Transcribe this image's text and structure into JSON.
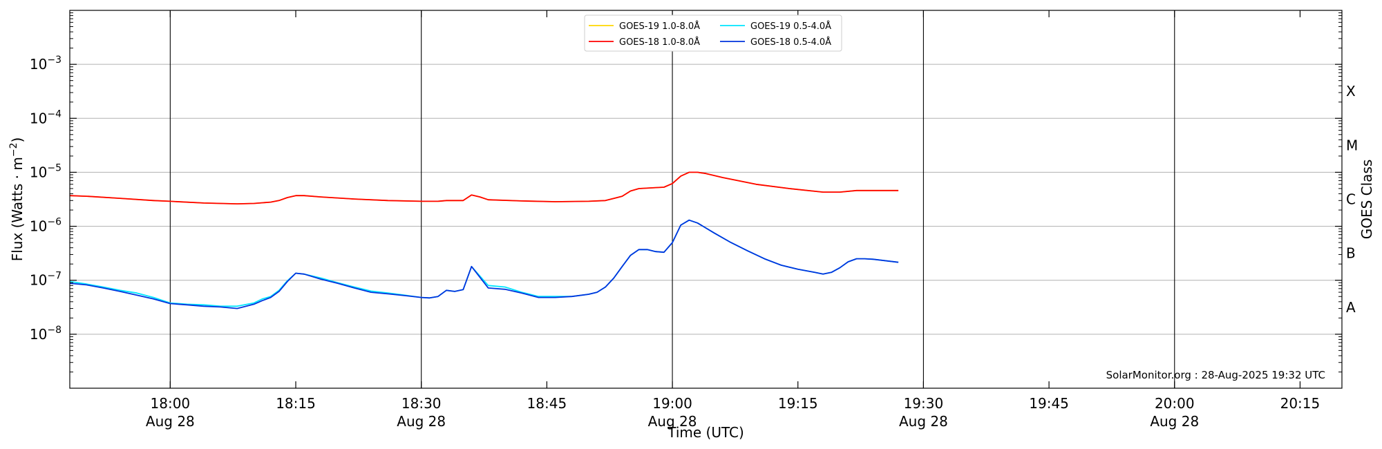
{
  "chart_data": {
    "type": "line",
    "xlabel": "Time (UTC)",
    "ylabel": "Flux (Watts · m",
    "ylabel_sup": "−2",
    "ylabel_close": ")",
    "right_label": "GOES Class",
    "credit": "SolarMonitor.org : 28-Aug-2025 19:32 UTC",
    "y_scale": "log",
    "ylim": [
      1e-09,
      0.01
    ],
    "xlim": [
      "17:48",
      "20:20"
    ],
    "grid": "horizontal",
    "legend_position": "top-center",
    "y_ticks": [
      {
        "value": 1e-08,
        "base": "10",
        "exp": "−8"
      },
      {
        "value": 1e-07,
        "base": "10",
        "exp": "−7"
      },
      {
        "value": 1e-06,
        "base": "10",
        "exp": "−6"
      },
      {
        "value": 1e-05,
        "base": "10",
        "exp": "−5"
      },
      {
        "value": 0.0001,
        "base": "10",
        "exp": "−4"
      },
      {
        "value": 0.001,
        "base": "10",
        "exp": "−3"
      }
    ],
    "x_ticks": [
      {
        "time": "18:00",
        "label": "18:00",
        "sublabel": "Aug 28",
        "vline": true
      },
      {
        "time": "18:15",
        "label": "18:15",
        "sublabel": "",
        "vline": false
      },
      {
        "time": "18:30",
        "label": "18:30",
        "sublabel": "Aug 28",
        "vline": true
      },
      {
        "time": "18:45",
        "label": "18:45",
        "sublabel": "",
        "vline": false
      },
      {
        "time": "19:00",
        "label": "19:00",
        "sublabel": "Aug 28",
        "vline": true
      },
      {
        "time": "19:15",
        "label": "19:15",
        "sublabel": "",
        "vline": false
      },
      {
        "time": "19:30",
        "label": "19:30",
        "sublabel": "Aug 28",
        "vline": true
      },
      {
        "time": "19:45",
        "label": "19:45",
        "sublabel": "",
        "vline": false
      },
      {
        "time": "20:00",
        "label": "20:00",
        "sublabel": "Aug 28",
        "vline": true
      },
      {
        "time": "20:15",
        "label": "20:15",
        "sublabel": "",
        "vline": false
      }
    ],
    "goes_classes": [
      {
        "label": "A",
        "value": 3.16e-08
      },
      {
        "label": "B",
        "value": 3.16e-07
      },
      {
        "label": "C",
        "value": 3.16e-06
      },
      {
        "label": "M",
        "value": 3.16e-05
      },
      {
        "label": "X",
        "value": 0.000316
      }
    ],
    "series": [
      {
        "name": "GOES-19 1.0-8.0Å",
        "color": "#FFD700",
        "x": [
          "17:48",
          "17:50",
          "17:54",
          "17:58",
          "18:00",
          "18:04",
          "18:08",
          "18:10",
          "18:12",
          "18:13",
          "18:14",
          "18:15",
          "18:16",
          "18:18",
          "18:22",
          "18:26",
          "18:30",
          "18:32",
          "18:33",
          "18:34",
          "18:35",
          "18:36",
          "18:37",
          "18:38",
          "18:42",
          "18:46",
          "18:50",
          "18:52",
          "18:54",
          "18:55",
          "18:56",
          "18:58",
          "18:59",
          "19:00",
          "19:01",
          "19:02",
          "19:03",
          "19:04",
          "19:06",
          "19:10",
          "19:14",
          "19:18",
          "19:20",
          "19:22",
          "19:27"
        ],
        "y": [
          3.7e-06,
          3.6e-06,
          3.3e-06,
          3e-06,
          2.9e-06,
          2.7e-06,
          2.6e-06,
          2.65e-06,
          2.8e-06,
          3e-06,
          3.4e-06,
          3.7e-06,
          3.7e-06,
          3.5e-06,
          3.2e-06,
          3e-06,
          2.9e-06,
          2.9e-06,
          3e-06,
          3e-06,
          3e-06,
          3.8e-06,
          3.5e-06,
          3.1e-06,
          2.95e-06,
          2.85e-06,
          2.9e-06,
          3e-06,
          3.6e-06,
          4.5e-06,
          5e-06,
          5.2e-06,
          5.3e-06,
          6.2e-06,
          8.5e-06,
          1e-05,
          1e-05,
          9.5e-06,
          8e-06,
          6e-06,
          5e-06,
          4.3e-06,
          4.3e-06,
          4.6e-06,
          4.6e-06
        ]
      },
      {
        "name": "GOES-18 1.0-8.0Å",
        "color": "#FF0000",
        "x": [
          "17:48",
          "17:50",
          "17:54",
          "17:58",
          "18:00",
          "18:04",
          "18:08",
          "18:10",
          "18:12",
          "18:13",
          "18:14",
          "18:15",
          "18:16",
          "18:18",
          "18:22",
          "18:26",
          "18:30",
          "18:32",
          "18:33",
          "18:34",
          "18:35",
          "18:36",
          "18:37",
          "18:38",
          "18:42",
          "18:46",
          "18:50",
          "18:52",
          "18:54",
          "18:55",
          "18:56",
          "18:58",
          "18:59",
          "19:00",
          "19:01",
          "19:02",
          "19:03",
          "19:04",
          "19:06",
          "19:10",
          "19:14",
          "19:18",
          "19:20",
          "19:22",
          "19:27"
        ],
        "y": [
          3.7e-06,
          3.6e-06,
          3.3e-06,
          3e-06,
          2.9e-06,
          2.7e-06,
          2.6e-06,
          2.65e-06,
          2.8e-06,
          3e-06,
          3.4e-06,
          3.7e-06,
          3.7e-06,
          3.5e-06,
          3.2e-06,
          3e-06,
          2.9e-06,
          2.9e-06,
          3e-06,
          3e-06,
          3e-06,
          3.8e-06,
          3.5e-06,
          3.1e-06,
          2.95e-06,
          2.85e-06,
          2.9e-06,
          3e-06,
          3.6e-06,
          4.5e-06,
          5e-06,
          5.2e-06,
          5.3e-06,
          6.2e-06,
          8.5e-06,
          1e-05,
          1e-05,
          9.5e-06,
          8e-06,
          6e-06,
          5e-06,
          4.3e-06,
          4.3e-06,
          4.6e-06,
          4.6e-06
        ]
      },
      {
        "name": "GOES-19 0.5-4.0Å",
        "color": "#00E5FF",
        "x": [
          "17:48",
          "17:50",
          "17:52",
          "17:54",
          "17:56",
          "17:58",
          "18:00",
          "18:02",
          "18:04",
          "18:06",
          "18:08",
          "18:10",
          "18:11",
          "18:12",
          "18:13",
          "18:14",
          "18:15",
          "18:16",
          "18:18",
          "18:20",
          "18:22",
          "18:24",
          "18:26",
          "18:28",
          "18:30",
          "18:31",
          "18:32",
          "18:33",
          "18:34",
          "18:35",
          "18:36",
          "18:38",
          "18:40",
          "18:42",
          "18:44",
          "18:46",
          "18:48",
          "18:50",
          "18:51",
          "18:52",
          "18:53",
          "18:54",
          "18:55",
          "18:56",
          "18:57",
          "18:58",
          "18:59",
          "19:00",
          "19:01",
          "19:02",
          "19:03",
          "19:05",
          "19:07",
          "19:09",
          "19:11",
          "19:13",
          "19:15",
          "19:17",
          "19:18",
          "19:19",
          "19:20",
          "19:21",
          "19:22",
          "19:23",
          "19:24",
          "19:27"
        ],
        "y": [
          9.5e-08,
          8.5e-08,
          7.5e-08,
          6.5e-08,
          5.8e-08,
          4.8e-08,
          3.8e-08,
          3.6e-08,
          3.5e-08,
          3.3e-08,
          3.3e-08,
          3.8e-08,
          4.5e-08,
          5e-08,
          6.5e-08,
          9.8e-08,
          1.35e-07,
          1.3e-07,
          1.1e-07,
          9e-08,
          7.5e-08,
          6.3e-08,
          5.8e-08,
          5.3e-08,
          4.8e-08,
          4.7e-08,
          5e-08,
          6.5e-08,
          6.2e-08,
          6.7e-08,
          1.8e-07,
          8e-08,
          7.5e-08,
          6e-08,
          5e-08,
          5e-08,
          5e-08,
          5.5e-08,
          6e-08,
          7.5e-08,
          1.1e-07,
          1.8e-07,
          2.9e-07,
          3.7e-07,
          3.7e-07,
          3.4e-07,
          3.3e-07,
          5e-07,
          1.05e-06,
          1.3e-06,
          1.15e-06,
          7.5e-07,
          5e-07,
          3.5e-07,
          2.5e-07,
          1.9e-07,
          1.6e-07,
          1.4e-07,
          1.3e-07,
          1.4e-07,
          1.7e-07,
          2.2e-07,
          2.5e-07,
          2.5e-07,
          2.45e-07,
          2.15e-07
        ]
      },
      {
        "name": "GOES-18 0.5-4.0Å",
        "color": "#0033DD",
        "x": [
          "17:48",
          "17:50",
          "17:52",
          "17:54",
          "17:56",
          "17:58",
          "18:00",
          "18:02",
          "18:04",
          "18:06",
          "18:08",
          "18:10",
          "18:11",
          "18:12",
          "18:13",
          "18:14",
          "18:15",
          "18:16",
          "18:18",
          "18:20",
          "18:22",
          "18:24",
          "18:26",
          "18:28",
          "18:30",
          "18:31",
          "18:32",
          "18:33",
          "18:34",
          "18:35",
          "18:36",
          "18:38",
          "18:40",
          "18:42",
          "18:44",
          "18:46",
          "18:48",
          "18:50",
          "18:51",
          "18:52",
          "18:53",
          "18:54",
          "18:55",
          "18:56",
          "18:57",
          "18:58",
          "18:59",
          "19:00",
          "19:01",
          "19:02",
          "19:03",
          "19:05",
          "19:07",
          "19:09",
          "19:11",
          "19:13",
          "19:15",
          "19:17",
          "19:18",
          "19:19",
          "19:20",
          "19:21",
          "19:22",
          "19:23",
          "19:24",
          "19:27"
        ],
        "y": [
          8.8e-08,
          8.2e-08,
          7.2e-08,
          6.2e-08,
          5.3e-08,
          4.5e-08,
          3.7e-08,
          3.5e-08,
          3.3e-08,
          3.2e-08,
          3e-08,
          3.6e-08,
          4.2e-08,
          4.8e-08,
          6.2e-08,
          9.5e-08,
          1.35e-07,
          1.3e-07,
          1.05e-07,
          8.8e-08,
          7.2e-08,
          6e-08,
          5.6e-08,
          5.2e-08,
          4.8e-08,
          4.7e-08,
          5e-08,
          6.5e-08,
          6.2e-08,
          6.7e-08,
          1.8e-07,
          7.2e-08,
          6.8e-08,
          5.8e-08,
          4.8e-08,
          4.8e-08,
          5e-08,
          5.5e-08,
          6e-08,
          7.5e-08,
          1.1e-07,
          1.8e-07,
          2.9e-07,
          3.7e-07,
          3.7e-07,
          3.4e-07,
          3.3e-07,
          5e-07,
          1.05e-06,
          1.3e-06,
          1.15e-06,
          7.5e-07,
          5e-07,
          3.5e-07,
          2.5e-07,
          1.9e-07,
          1.6e-07,
          1.4e-07,
          1.3e-07,
          1.4e-07,
          1.7e-07,
          2.2e-07,
          2.5e-07,
          2.5e-07,
          2.45e-07,
          2.15e-07
        ]
      }
    ]
  }
}
